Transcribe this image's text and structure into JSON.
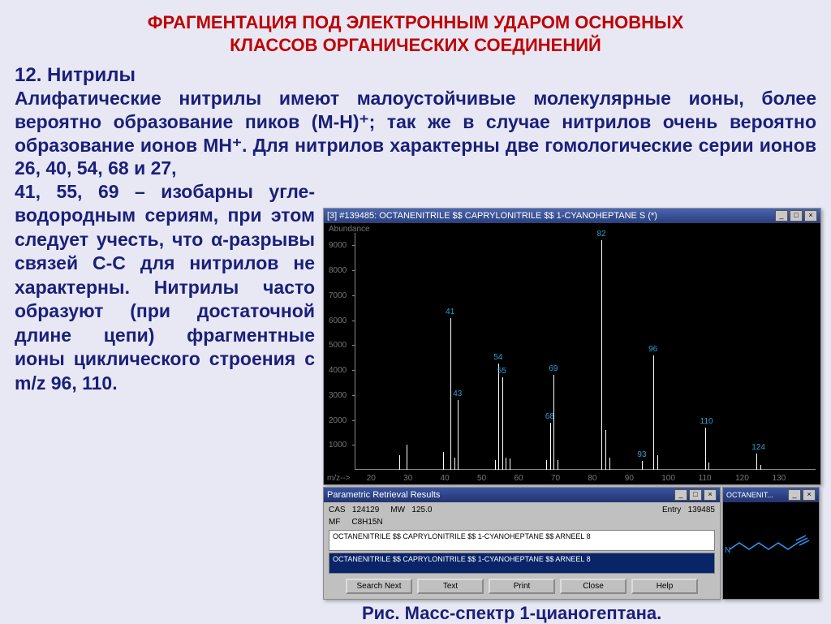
{
  "title_line1": "ФРАГМЕНТАЦИЯ ПОД ЭЛЕКТРОННЫМ УДАРОМ ОСНОВНЫХ",
  "title_line2": "КЛАССОВ ОРГАНИЧЕСКИХ СОЕДИНЕНИЙ",
  "section": "12. Нитрилы",
  "para_top": "Алифатические нитрилы имеют малоустойчивые молекулярные ионы, более вероятно образование пиков (M-H)⁺; так же в случае нитрилов очень вероятно образование ионов MH⁺. Для нитрилов характерны две гомологические серии ионов 26, 40, 54, 68 и 27,",
  "para_side": "41, 55, 69 – изобарны угле- водородным сериям, при этом следует учесть, что α-разрывы связей C-C для нитрилов не характерны. Нитрилы часто образуют (при достаточной длине цепи) фрагментные ионы циклического строения с m/z 96, 110.",
  "spectrum": {
    "window_title": "[3] #139485: OCTANENITRILE $$ CAPRYLONITRILE $$ 1-CYANOHEPTANE S (*)",
    "y_axis_label": "Abundance",
    "x_axis_label": "m/z-->",
    "x_min": 15,
    "x_max": 140,
    "y_max": 9500,
    "y_ticks": [
      1000,
      2000,
      3000,
      4000,
      5000,
      6000,
      7000,
      8000,
      9000
    ],
    "x_ticks": [
      20,
      30,
      40,
      50,
      60,
      70,
      80,
      90,
      100,
      110,
      120,
      130
    ],
    "peaks": [
      {
        "mz": 27,
        "abund": 600
      },
      {
        "mz": 29,
        "abund": 1000
      },
      {
        "mz": 39,
        "abund": 700
      },
      {
        "mz": 41,
        "abund": 6100,
        "label": "41"
      },
      {
        "mz": 42,
        "abund": 500
      },
      {
        "mz": 43,
        "abund": 2800,
        "label": "43"
      },
      {
        "mz": 53,
        "abund": 400
      },
      {
        "mz": 54,
        "abund": 4250,
        "label": "54"
      },
      {
        "mz": 55,
        "abund": 3700,
        "label": "55"
      },
      {
        "mz": 56,
        "abund": 500
      },
      {
        "mz": 57,
        "abund": 450
      },
      {
        "mz": 67,
        "abund": 400
      },
      {
        "mz": 68,
        "abund": 1900,
        "label": "68"
      },
      {
        "mz": 69,
        "abund": 3800,
        "label": "69"
      },
      {
        "mz": 70,
        "abund": 400
      },
      {
        "mz": 82,
        "abund": 9200,
        "label": "82"
      },
      {
        "mz": 83,
        "abund": 1600
      },
      {
        "mz": 84,
        "abund": 500
      },
      {
        "mz": 93,
        "abund": 350,
        "label": "93"
      },
      {
        "mz": 96,
        "abund": 4600,
        "label": "96"
      },
      {
        "mz": 97,
        "abund": 600
      },
      {
        "mz": 110,
        "abund": 1700,
        "label": "110"
      },
      {
        "mz": 111,
        "abund": 300
      },
      {
        "mz": 124,
        "abund": 650,
        "label": "124"
      },
      {
        "mz": 125,
        "abund": 200
      }
    ],
    "peak_color": "#ffffff",
    "label_color": "#2aa0d0",
    "bg_color": "#000000"
  },
  "retrieval": {
    "window_title": "Parametric Retrieval Results",
    "cas_label": "CAS",
    "cas": "124129",
    "mw_label": "MW",
    "mw": "125.0",
    "entry_label": "Entry",
    "entry": "139485",
    "mf_label": "MF",
    "mf": "C8H15N",
    "row1": "OCTANENITRILE $$ CAPRYLONITRILE $$ 1-CYANOHEPTANE $$ ARNEEL 8",
    "row2": "OCTANENITRILE $$ CAPRYLONITRILE $$ 1-CYANOHEPTANE $$ ARNEEL 8",
    "buttons": {
      "search": "Search Next",
      "text": "Text",
      "print": "Print",
      "close": "Close",
      "help": "Help"
    }
  },
  "structure": {
    "window_title": "OCTANENIT...",
    "atom_label": "N"
  },
  "caption": "Рис. Масс-спектр 1-цианогептана.",
  "colors": {
    "title": "#c00000",
    "body_text": "#1a1f7a",
    "page_bg": "#e8e8f4"
  }
}
